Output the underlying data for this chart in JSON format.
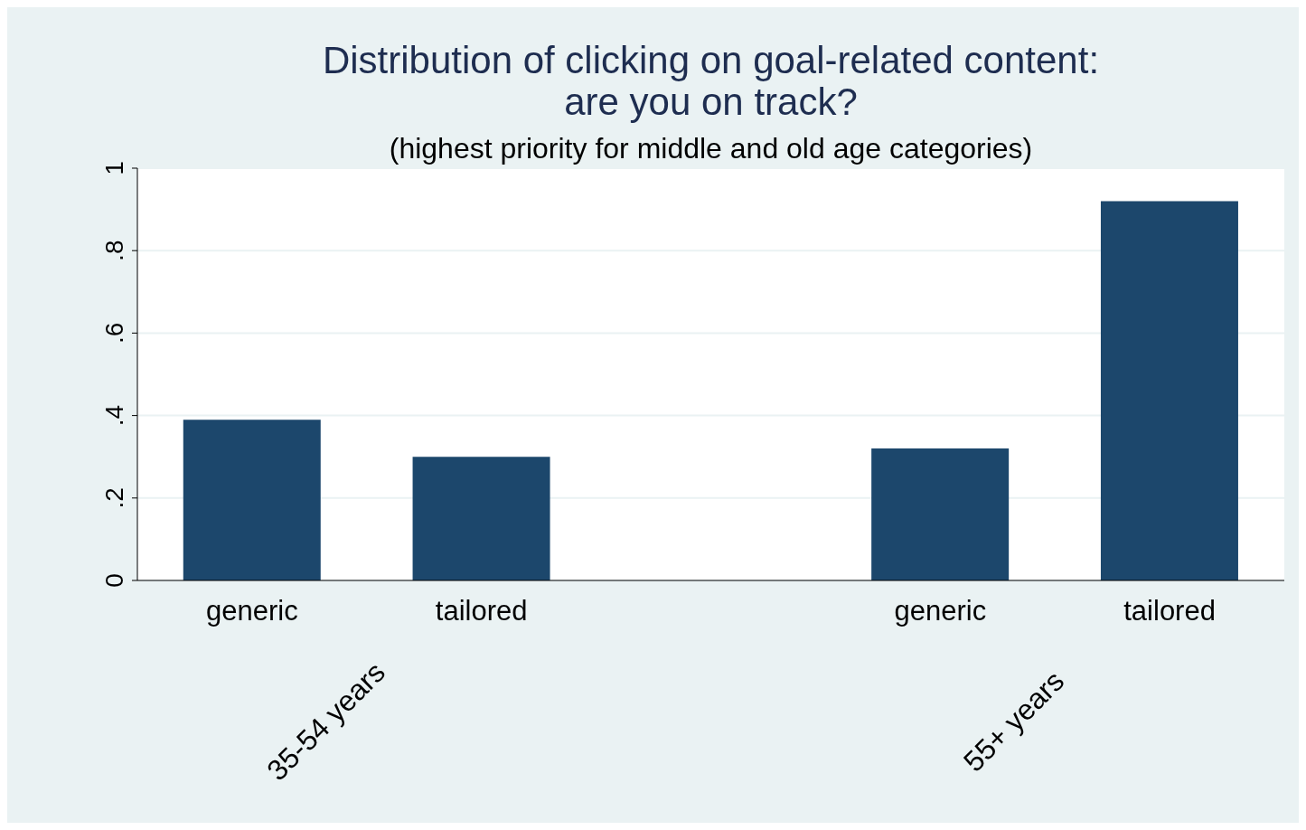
{
  "chart_data": {
    "type": "bar",
    "title": "Distribution of clicking on goal-related content:\nare you on track?",
    "subtitle": "(highest priority for middle and old age categories)",
    "categories": [
      "generic",
      "tailored",
      null,
      "generic",
      "tailored"
    ],
    "values": [
      0.39,
      0.3,
      null,
      0.32,
      0.92
    ],
    "color": "#1c476c",
    "ylim": [
      0,
      1
    ],
    "yticks": [
      {
        "value": 0,
        "label": "0"
      },
      {
        "value": 0.2,
        "label": ".2"
      },
      {
        "value": 0.4,
        "label": ".4"
      },
      {
        "value": 0.6,
        "label": ".6"
      },
      {
        "value": 0.8,
        "label": ".8"
      },
      {
        "value": 1,
        "label": "1"
      }
    ],
    "grid": "y",
    "annotations": [
      "35-54 years",
      "55+ years"
    ]
  }
}
